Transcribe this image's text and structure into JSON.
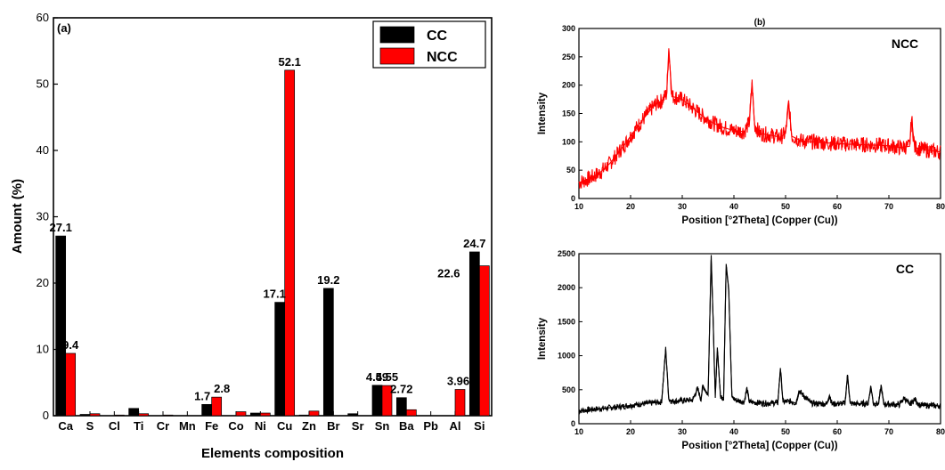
{
  "chart_data": [
    {
      "type": "bar",
      "panel_label": "(a)",
      "title": "",
      "xlabel": "Elements composition",
      "ylabel": "Amount (%)",
      "ylim": [
        0,
        60
      ],
      "yticks": [
        0,
        10,
        20,
        30,
        40,
        50,
        60
      ],
      "legend_position": "top-right",
      "categories": [
        "Ca",
        "S",
        "Cl",
        "Ti",
        "Cr",
        "Mn",
        "Fe",
        "Co",
        "Ni",
        "Cu",
        "Zn",
        "Br",
        "Sr",
        "Sn",
        "Ba",
        "Pb",
        "Al",
        "Si"
      ],
      "series": [
        {
          "name": "CC",
          "color": "#000000",
          "values": [
            27.1,
            0.2,
            0,
            1.1,
            0,
            0,
            1.7,
            0,
            0.4,
            17.1,
            0.1,
            19.2,
            0.3,
            4.59,
            2.72,
            0,
            0,
            24.7
          ]
        },
        {
          "name": "NCC",
          "color": "#ff0000",
          "values": [
            9.4,
            0.3,
            0.1,
            0.3,
            0.1,
            0,
            2.8,
            0.6,
            0.4,
            52.1,
            0.7,
            0,
            0,
            4.55,
            0.9,
            0,
            3.96,
            22.6
          ]
        }
      ],
      "data_labels": [
        {
          "text": "27.1",
          "category": "Ca",
          "series": "CC"
        },
        {
          "text": "9.4",
          "category": "Ca",
          "series": "NCC"
        },
        {
          "text": "1.7",
          "category": "Fe",
          "series": "CC"
        },
        {
          "text": "2.8",
          "category": "Fe",
          "series": "NCC"
        },
        {
          "text": "17.1",
          "category": "Cu",
          "series": "CC"
        },
        {
          "text": "52.1",
          "category": "Cu",
          "series": "NCC"
        },
        {
          "text": "19.2",
          "category": "Br",
          "series": "CC"
        },
        {
          "text": "4.59",
          "category": "Sn",
          "series": "CC"
        },
        {
          "text": "4.55",
          "category": "Sn",
          "series": "NCC"
        },
        {
          "text": "2.72",
          "category": "Ba",
          "series": "CC"
        },
        {
          "text": "3.96",
          "category": "Al",
          "series": "NCC"
        },
        {
          "text": "24.7",
          "category": "Si",
          "series": "CC"
        },
        {
          "text": "22.6",
          "category": "Si",
          "series": "NCC"
        }
      ]
    },
    {
      "type": "line",
      "panel_label": "(b)",
      "title": "",
      "annotation": "NCC",
      "xlabel": "Position [°2Theta] (Copper (Cu))",
      "ylabel": "Intensity",
      "xlim": [
        10,
        80
      ],
      "ylim": [
        0,
        300
      ],
      "xticks": [
        10,
        20,
        30,
        40,
        50,
        60,
        70,
        80
      ],
      "yticks": [
        0,
        50,
        100,
        150,
        200,
        250,
        300
      ],
      "color": "#ff0000",
      "x": [
        10,
        12,
        14,
        16,
        18,
        20,
        22,
        24,
        25,
        26,
        27,
        27.4,
        28,
        29,
        30,
        32,
        34,
        36,
        38,
        40,
        42,
        43,
        43.5,
        44,
        45,
        47,
        49,
        50,
        50.6,
        51.2,
        53,
        55,
        58,
        60,
        62,
        65,
        68,
        70,
        72,
        74,
        74.4,
        75,
        77,
        80
      ],
      "y": [
        28,
        35,
        45,
        62,
        85,
        110,
        135,
        158,
        168,
        172,
        185,
        265,
        180,
        178,
        175,
        160,
        145,
        133,
        125,
        120,
        118,
        135,
        205,
        130,
        115,
        112,
        108,
        115,
        168,
        110,
        102,
        100,
        98,
        97,
        96,
        95,
        94,
        93,
        90,
        92,
        140,
        90,
        86,
        82
      ]
    },
    {
      "type": "line",
      "annotation": "CC",
      "xlabel": "Position [°2Theta] (Copper (Cu))",
      "ylabel": "Intensity",
      "xlim": [
        10,
        80
      ],
      "ylim": [
        0,
        2500
      ],
      "xticks": [
        10,
        20,
        30,
        40,
        50,
        60,
        70,
        80
      ],
      "yticks": [
        0,
        500,
        1000,
        1500,
        2000,
        2500
      ],
      "color": "#000000",
      "x": [
        10,
        14,
        18,
        22,
        26,
        26.8,
        27.4,
        28,
        30,
        32,
        33,
        33.6,
        34,
        35,
        35.6,
        36,
        36.4,
        36.8,
        37.4,
        38,
        38.5,
        39,
        39.6,
        40.2,
        42,
        42.5,
        43,
        46,
        48.5,
        49,
        49.5,
        51,
        52,
        52.6,
        55,
        58,
        58.5,
        59,
        61.5,
        62,
        62.5,
        64,
        66,
        66.5,
        67,
        68,
        68.5,
        69,
        72,
        73,
        74,
        75,
        76,
        78,
        80
      ],
      "y": [
        190,
        220,
        250,
        290,
        320,
        1100,
        360,
        330,
        340,
        350,
        520,
        350,
        560,
        420,
        2480,
        1450,
        380,
        1120,
        400,
        380,
        2350,
        1980,
        400,
        350,
        320,
        520,
        320,
        300,
        310,
        820,
        320,
        330,
        300,
        480,
        300,
        290,
        420,
        290,
        300,
        720,
        300,
        290,
        300,
        550,
        300,
        290,
        560,
        290,
        280,
        380,
        280,
        360,
        270,
        270,
        260
      ]
    }
  ]
}
